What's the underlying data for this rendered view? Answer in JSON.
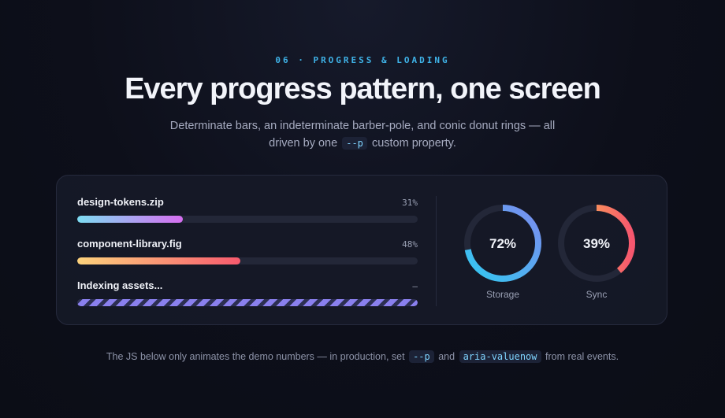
{
  "eyebrow": "06 · PROGRESS & LOADING",
  "headline": "Every progress pattern, one screen",
  "subtitle": {
    "before": "Determinate bars, an indeterminate barber-pole, and conic donut rings — all driven by one",
    "code": "--p",
    "after": "custom property."
  },
  "bars": [
    {
      "label": "design-tokens.zip",
      "value_text": "31%",
      "progress": 0.31,
      "variant": "cyan-pink"
    },
    {
      "label": "component-library.fig",
      "value_text": "48%",
      "progress": 0.48,
      "variant": "amber-red"
    },
    {
      "label": "Indexing assets...",
      "value_text": "–",
      "progress": null,
      "variant": "striped"
    }
  ],
  "rings": [
    {
      "value_text": "72%",
      "progress": 0.72,
      "label": "Storage",
      "color_start": "#32c8f0",
      "color_end": "#7c8cf0"
    },
    {
      "value_text": "39%",
      "progress": 0.39,
      "label": "Sync",
      "color_start": "#fcc24c",
      "color_end": "#f6566e"
    }
  ],
  "footer": {
    "before": "The JS below only animates the demo numbers — in production, set",
    "code1": "--p",
    "middle": "and",
    "code2": "aria-valuenow",
    "after": "from real events."
  },
  "colors": {
    "accent": "#3fb3e8",
    "track": "#232738",
    "stripe": "#8a80ee"
  }
}
